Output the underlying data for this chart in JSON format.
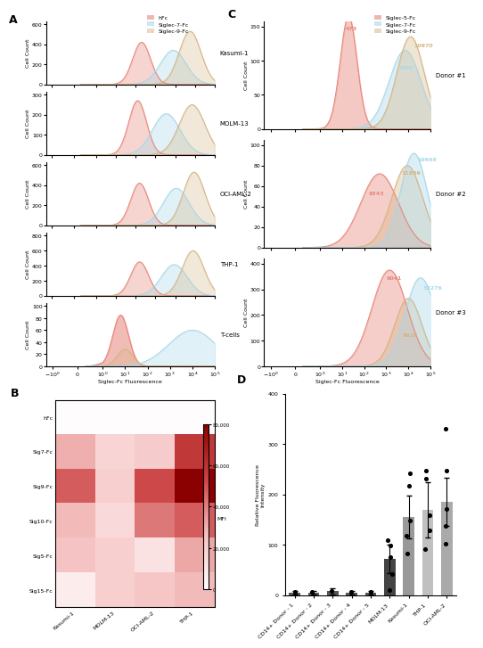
{
  "flow_colors_A": {
    "hFc": "#E8857A",
    "Siglec7": "#A8D8EA",
    "Siglec9": "#D4B483"
  },
  "flow_colors_C": {
    "Siglec5": "#E8857A",
    "Siglec7": "#A8D8EA",
    "Siglec9": "#D4B483"
  },
  "heatmap_data": [
    [
      1500,
      1500,
      1500,
      1500
    ],
    [
      30000,
      18000,
      22000,
      58000
    ],
    [
      48000,
      20000,
      52000,
      82000
    ],
    [
      28000,
      16000,
      42000,
      48000
    ],
    [
      25000,
      20000,
      12000,
      32000
    ],
    [
      8000,
      20000,
      24000,
      28000
    ]
  ],
  "heatmap_rows": [
    "hFc",
    "Sig7-Fc",
    "Sig9-Fc",
    "Sig10-Fc",
    "Sig5-Fc",
    "Sig15-Fc"
  ],
  "heatmap_cols": [
    "Kasumi-1",
    "MOLM-13",
    "OCI-AML-2",
    "THP-1"
  ],
  "heatmap_vmin": 0,
  "heatmap_vmax": 80000,
  "heatmap_cbar_ticks": [
    0,
    20000,
    40000,
    60000,
    80000
  ],
  "heatmap_cbar_labels": [
    "0",
    "20,000",
    "40,000",
    "60,000",
    "80,000"
  ]
}
